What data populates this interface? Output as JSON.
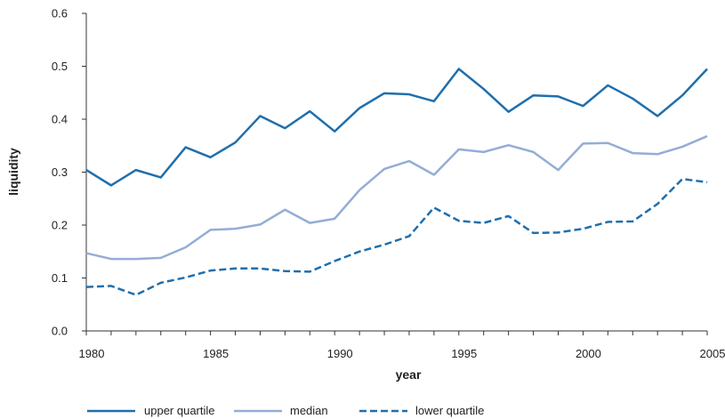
{
  "chart_data": {
    "type": "line",
    "title": "",
    "xlabel": "year",
    "ylabel": "liquidity",
    "xlim": [
      1980,
      2005
    ],
    "ylim": [
      0,
      0.6
    ],
    "x_ticks": [
      1980,
      1985,
      1990,
      1995,
      2000,
      2005
    ],
    "y_ticks": [
      "0.0",
      "0.1",
      "0.2",
      "0.3",
      "0.4",
      "0.5",
      "0.6"
    ],
    "grid": false,
    "legend_position": "bottom",
    "x": [
      1980,
      1981,
      1982,
      1983,
      1984,
      1985,
      1986,
      1987,
      1988,
      1989,
      1990,
      1991,
      1992,
      1993,
      1994,
      1995,
      1996,
      1997,
      1998,
      1999,
      2000,
      2001,
      2002,
      2003,
      2004,
      2005
    ],
    "series": [
      {
        "name": "upper quartile",
        "color": "#1f6fad",
        "dash": "solid",
        "values": [
          0.304,
          0.275,
          0.304,
          0.29,
          0.347,
          0.328,
          0.356,
          0.406,
          0.383,
          0.415,
          0.377,
          0.421,
          0.449,
          0.447,
          0.434,
          0.495,
          0.457,
          0.414,
          0.445,
          0.443,
          0.425,
          0.464,
          0.439,
          0.406,
          0.445,
          0.495
        ]
      },
      {
        "name": "median",
        "color": "#94add6",
        "dash": "solid",
        "values": [
          0.147,
          0.136,
          0.136,
          0.138,
          0.158,
          0.191,
          0.193,
          0.201,
          0.229,
          0.204,
          0.212,
          0.266,
          0.306,
          0.321,
          0.295,
          0.343,
          0.338,
          0.351,
          0.338,
          0.304,
          0.354,
          0.355,
          0.336,
          0.334,
          0.348,
          0.368
        ]
      },
      {
        "name": "lower quartile",
        "color": "#1f6fad",
        "dash": "dashed",
        "values": [
          0.083,
          0.085,
          0.068,
          0.091,
          0.101,
          0.114,
          0.118,
          0.118,
          0.113,
          0.112,
          0.132,
          0.15,
          0.163,
          0.179,
          0.233,
          0.208,
          0.204,
          0.217,
          0.185,
          0.186,
          0.193,
          0.206,
          0.207,
          0.24,
          0.287,
          0.281
        ]
      }
    ]
  }
}
